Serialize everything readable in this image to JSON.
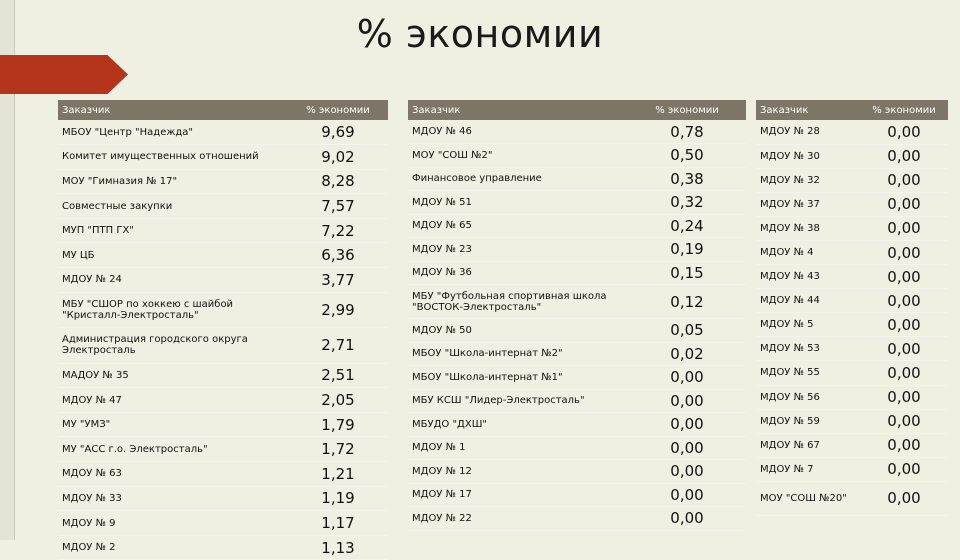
{
  "slide": {
    "title": "% экономии"
  },
  "tables": [
    {
      "headers": [
        "Заказчик",
        "% экономии"
      ],
      "rows": [
        {
          "name": "МБОУ \"Центр \"Надежда\"",
          "value": "9,69"
        },
        {
          "name": "Комитет имущественных отношений",
          "value": "9,02"
        },
        {
          "name": "МОУ \"Гимназия № 17\"",
          "value": "8,28"
        },
        {
          "name": "Совместные закупки",
          "value": "7,57"
        },
        {
          "name": "МУП \"ПТП ГХ\"",
          "value": "7,22"
        },
        {
          "name": "МУ ЦБ",
          "value": "6,36"
        },
        {
          "name": "МДОУ № 24",
          "value": "3,77"
        },
        {
          "name": "МБУ \"СШОР по хоккею с шайбой \"Кристалл-Электросталь\"",
          "value": "2,99"
        },
        {
          "name": "Администрация городского округа Электросталь",
          "value": "2,71"
        },
        {
          "name": "МАДОУ № 35",
          "value": "2,51"
        },
        {
          "name": "МДОУ № 47",
          "value": "2,05"
        },
        {
          "name": "МУ \"УМЗ\"",
          "value": "1,79"
        },
        {
          "name": "МУ \"АСС г.о. Электросталь\"",
          "value": "1,72"
        },
        {
          "name": "МДОУ № 63",
          "value": "1,21"
        },
        {
          "name": "МДОУ № 33",
          "value": "1,19"
        },
        {
          "name": "МДОУ № 9",
          "value": "1,17"
        },
        {
          "name": "МДОУ № 2",
          "value": "1,13"
        }
      ]
    },
    {
      "headers": [
        "Заказчик",
        "% экономии"
      ],
      "rows": [
        {
          "name": "МДОУ № 46",
          "value": "0,78"
        },
        {
          "name": "МОУ \"СОШ №2\"",
          "value": "0,50"
        },
        {
          "name": "Финансовое управление",
          "value": "0,38"
        },
        {
          "name": "МДОУ № 51",
          "value": "0,32"
        },
        {
          "name": "МДОУ № 65",
          "value": "0,24"
        },
        {
          "name": "МДОУ № 23",
          "value": "0,19"
        },
        {
          "name": "МДОУ № 36",
          "value": "0,15"
        },
        {
          "name": "МБУ \"Футбольная спортивная школа \"ВОСТОК-Электросталь\"",
          "value": "0,12"
        },
        {
          "name": "МДОУ № 50",
          "value": "0,05"
        },
        {
          "name": "МБОУ \"Школа-интернат №2\"",
          "value": "0,02"
        },
        {
          "name": "МБОУ \"Школа-интернат №1\"",
          "value": "0,00"
        },
        {
          "name": "МБУ КСШ \"Лидер-Электросталь\"",
          "value": "0,00"
        },
        {
          "name": "МБУДО \"ДХШ\"",
          "value": "0,00"
        },
        {
          "name": "МДОУ № 1",
          "value": "0,00"
        },
        {
          "name": "МДОУ № 12",
          "value": "0,00"
        },
        {
          "name": "МДОУ № 17",
          "value": "0,00"
        },
        {
          "name": "МДОУ № 22",
          "value": "0,00"
        }
      ]
    },
    {
      "headers": [
        "Заказчик",
        "% экономии"
      ],
      "rows": [
        {
          "name": "МДОУ № 28",
          "value": "0,00"
        },
        {
          "name": "МДОУ № 30",
          "value": "0,00"
        },
        {
          "name": "МДОУ № 32",
          "value": "0,00"
        },
        {
          "name": "МДОУ № 37",
          "value": "0,00"
        },
        {
          "name": "МДОУ № 38",
          "value": "0,00"
        },
        {
          "name": "МДОУ № 4",
          "value": "0,00"
        },
        {
          "name": "МДОУ № 43",
          "value": "0,00"
        },
        {
          "name": "МДОУ № 44",
          "value": "0,00"
        },
        {
          "name": "МДОУ № 5",
          "value": "0,00"
        },
        {
          "name": "МДОУ № 53",
          "value": "0,00"
        },
        {
          "name": "МДОУ № 55",
          "value": "0,00"
        },
        {
          "name": "МДОУ № 56",
          "value": "0,00"
        },
        {
          "name": "МДОУ № 59",
          "value": "0,00"
        },
        {
          "name": "МДОУ № 67",
          "value": "0,00"
        },
        {
          "name": "МДОУ № 7",
          "value": "0,00"
        },
        {
          "name": "МОУ \"СОШ №20\"",
          "value": "0,00"
        }
      ]
    }
  ]
}
